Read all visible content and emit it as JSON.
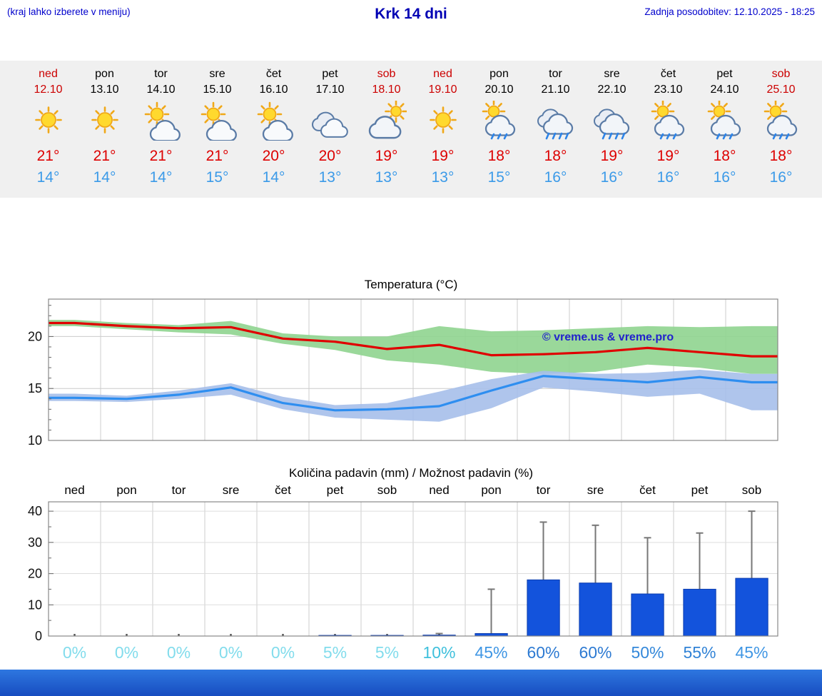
{
  "header": {
    "hint": "(kraj lahko izberete v meniju)",
    "title": "Krk 14 dni",
    "updated": "Zadnja posodobitev: 12.10.2025 - 18:25"
  },
  "colors": {
    "accent_blue": "#0000cc",
    "weekend_red": "#cc0000",
    "tmax_red": "#dd0000",
    "tmin_blue": "#3b9ae8",
    "strip_bg": "#f0f0f0",
    "watermark_blue": "#2222cc",
    "bottom_bar_top": "#2e77e0",
    "bottom_bar_bottom": "#1549bd"
  },
  "forecast": {
    "days": [
      {
        "name": "ned",
        "date": "12.10",
        "weekend": true,
        "icon": "sun",
        "tmax": "21°",
        "tmin": "14°"
      },
      {
        "name": "pon",
        "date": "13.10",
        "weekend": false,
        "icon": "sun",
        "tmax": "21°",
        "tmin": "14°"
      },
      {
        "name": "tor",
        "date": "14.10",
        "weekend": false,
        "icon": "sun-cloud",
        "tmax": "21°",
        "tmin": "14°"
      },
      {
        "name": "sre",
        "date": "15.10",
        "weekend": false,
        "icon": "sun-cloud",
        "tmax": "21°",
        "tmin": "15°"
      },
      {
        "name": "čet",
        "date": "16.10",
        "weekend": false,
        "icon": "sun-cloud",
        "tmax": "20°",
        "tmin": "14°"
      },
      {
        "name": "pet",
        "date": "17.10",
        "weekend": false,
        "icon": "cloud",
        "tmax": "20°",
        "tmin": "13°"
      },
      {
        "name": "sob",
        "date": "18.10",
        "weekend": true,
        "icon": "cloud-sun",
        "tmax": "19°",
        "tmin": "13°"
      },
      {
        "name": "ned",
        "date": "19.10",
        "weekend": true,
        "icon": "sun",
        "tmax": "19°",
        "tmin": "13°"
      },
      {
        "name": "pon",
        "date": "20.10",
        "weekend": false,
        "icon": "sun-rain",
        "tmax": "18°",
        "tmin": "15°"
      },
      {
        "name": "tor",
        "date": "21.10",
        "weekend": false,
        "icon": "rain",
        "tmax": "18°",
        "tmin": "16°"
      },
      {
        "name": "sre",
        "date": "22.10",
        "weekend": false,
        "icon": "rain",
        "tmax": "19°",
        "tmin": "16°"
      },
      {
        "name": "čet",
        "date": "23.10",
        "weekend": false,
        "icon": "sun-rain",
        "tmax": "19°",
        "tmin": "16°"
      },
      {
        "name": "pet",
        "date": "24.10",
        "weekend": false,
        "icon": "sun-rain",
        "tmax": "18°",
        "tmin": "16°"
      },
      {
        "name": "sob",
        "date": "25.10",
        "weekend": true,
        "icon": "sun-rain",
        "tmax": "18°",
        "tmin": "16°"
      }
    ]
  },
  "chart_data": [
    {
      "type": "line",
      "title": "Temperatura (°C)",
      "x_labels": [
        "ned",
        "pon",
        "tor",
        "sre",
        "čet",
        "pet",
        "sob",
        "ned",
        "pon",
        "tor",
        "sre",
        "čet",
        "pet",
        "sob"
      ],
      "ylim": [
        10,
        23.6
      ],
      "yticks": [
        10,
        15,
        20
      ],
      "grid": true,
      "watermark": "© vreme.us & vreme.pro",
      "series": [
        {
          "name": "max-temp",
          "color": "#e00000",
          "values": [
            21.3,
            21.0,
            20.8,
            20.9,
            19.8,
            19.5,
            18.8,
            19.2,
            18.2,
            18.3,
            18.5,
            18.9,
            18.5,
            18.1
          ]
        },
        {
          "name": "min-temp",
          "color": "#2e8ef0",
          "values": [
            14.1,
            14.0,
            14.4,
            15.1,
            13.6,
            12.9,
            13.0,
            13.3,
            14.8,
            16.2,
            15.9,
            15.6,
            16.1,
            15.6
          ]
        }
      ],
      "bands": [
        {
          "name": "max-temp-range",
          "color": "#8fd48f",
          "upper": [
            21.6,
            21.3,
            21.1,
            21.5,
            20.3,
            20.0,
            20.0,
            21.0,
            20.5,
            20.6,
            20.8,
            21.0,
            20.9,
            21.0
          ],
          "lower": [
            21.0,
            20.7,
            20.4,
            20.2,
            19.3,
            18.7,
            17.7,
            17.3,
            16.6,
            16.4,
            16.6,
            17.3,
            17.0,
            16.4
          ]
        },
        {
          "name": "min-temp-range",
          "color": "#a6bfea",
          "upper": [
            14.5,
            14.3,
            14.8,
            15.5,
            14.2,
            13.4,
            13.6,
            14.7,
            15.9,
            16.7,
            16.4,
            16.5,
            16.8,
            16.4
          ],
          "lower": [
            13.8,
            13.7,
            14.0,
            14.4,
            13.0,
            12.2,
            12.0,
            11.8,
            13.1,
            15.1,
            14.7,
            14.2,
            14.5,
            12.9
          ]
        }
      ]
    },
    {
      "type": "bar",
      "title": "Količina padavin (mm) / Možnost padavin (%)",
      "categories": [
        "ned",
        "pon",
        "tor",
        "sre",
        "čet",
        "pet",
        "sob",
        "ned",
        "pon",
        "tor",
        "sre",
        "čet",
        "pet",
        "sob"
      ],
      "values": [
        0,
        0,
        0,
        0,
        0,
        0.2,
        0.2,
        0.3,
        0.8,
        18,
        17,
        13.5,
        15,
        18.5
      ],
      "whisker_max": [
        0,
        0,
        0,
        0,
        0,
        0.5,
        0.5,
        0.8,
        15,
        36.5,
        35.5,
        31.5,
        33,
        40
      ],
      "probabilities": [
        "0%",
        "0%",
        "0%",
        "0%",
        "0%",
        "5%",
        "5%",
        "10%",
        "45%",
        "60%",
        "60%",
        "50%",
        "55%",
        "45%"
      ],
      "prob_colors": [
        "#82dcec",
        "#82dcec",
        "#82dcec",
        "#82dcec",
        "#82dcec",
        "#82dcec",
        "#82dcec",
        "#3fc0dc",
        "#3f96e4",
        "#2d7ad2",
        "#2d7ad2",
        "#3488da",
        "#3082d6",
        "#3f96e4"
      ],
      "ylim": [
        0,
        43
      ],
      "yticks": [
        0,
        10,
        20,
        30,
        40
      ],
      "bar_color": "#1353dc",
      "whisker_color": "#777777"
    }
  ]
}
